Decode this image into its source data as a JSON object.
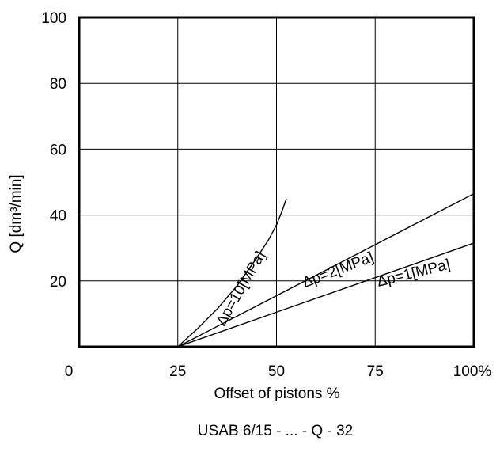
{
  "chart_data": {
    "type": "line",
    "title": "",
    "caption": "USAB 6/15 - ... - Q - 32",
    "xlabel": "Offset of pistons %",
    "ylabel": "Q [dm³/min]",
    "xlim": [
      0,
      100
    ],
    "ylim": [
      0,
      100
    ],
    "grid": true,
    "x_ticks": [
      {
        "value": 0,
        "label": "0"
      },
      {
        "value": 25,
        "label": "25"
      },
      {
        "value": 50,
        "label": "50"
      },
      {
        "value": 75,
        "label": "75"
      },
      {
        "value": 100,
        "label": "100%"
      }
    ],
    "y_ticks": [
      {
        "value": 20,
        "label": "20"
      },
      {
        "value": 40,
        "label": "40"
      },
      {
        "value": 60,
        "label": "60"
      },
      {
        "value": 80,
        "label": "80"
      },
      {
        "value": 100,
        "label": "100"
      }
    ],
    "series": [
      {
        "name": "Δp=10[MPa]",
        "x": [
          25,
          30,
          35,
          40,
          45,
          48,
          50,
          51.5,
          52.5
        ],
        "y": [
          0,
          5.5,
          11.5,
          18.5,
          27,
          32.5,
          37,
          41.5,
          45
        ]
      },
      {
        "name": "Δp=2[MPa]",
        "x": [
          25,
          100
        ],
        "y": [
          0,
          46.5
        ]
      },
      {
        "name": "Δp=1[MPa]",
        "x": [
          25,
          100
        ],
        "y": [
          0,
          31.5
        ]
      }
    ],
    "annotations": [
      {
        "text": "Δp=10[MPa]",
        "series": 0
      },
      {
        "text": "Δp=2[MPa]",
        "series": 1
      },
      {
        "text": "Δp=1[MPa]",
        "series": 2
      }
    ]
  }
}
